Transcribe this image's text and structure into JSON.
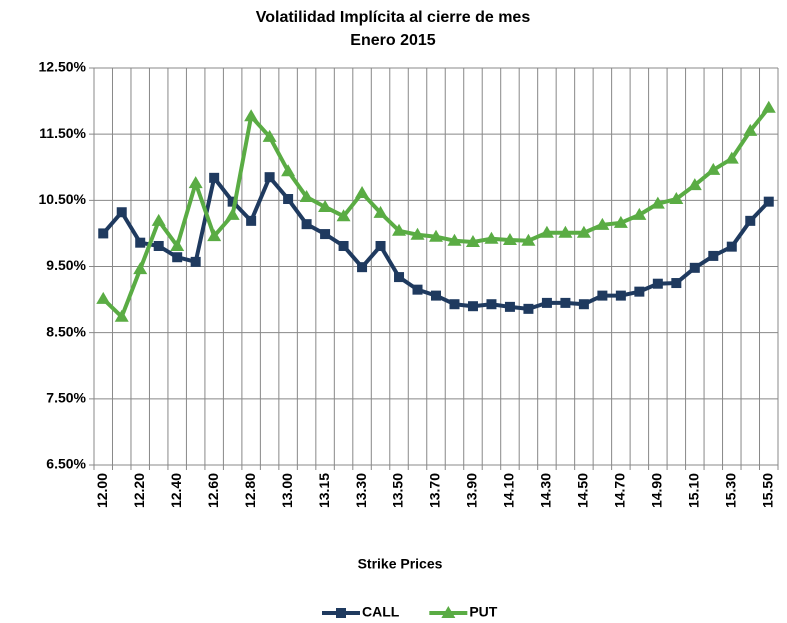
{
  "chart_data": {
    "type": "line",
    "title": "Volatilidad Implícita al cierre de mes",
    "subtitle": "Enero 2015",
    "x_label": "Strike Prices",
    "categories": [
      "12.00",
      null,
      "12.20",
      null,
      "12.40",
      null,
      "12.60",
      null,
      "12.80",
      null,
      "13.00",
      null,
      "13.15",
      null,
      "13.30",
      null,
      "13.50",
      null,
      "13.70",
      null,
      "13.90",
      null,
      "14.10",
      null,
      "14.30",
      null,
      "14.50",
      null,
      "14.70",
      null,
      "14.90",
      null,
      "15.10",
      null,
      "15.30",
      null,
      "15.50"
    ],
    "series": [
      {
        "name": "CALL",
        "color": "#1f3a5f",
        "marker": "square",
        "values": [
          10.0,
          10.32,
          9.86,
          9.81,
          9.64,
          9.57,
          10.84,
          10.48,
          10.19,
          10.85,
          10.52,
          10.14,
          9.99,
          9.81,
          9.49,
          9.81,
          9.34,
          9.15,
          9.06,
          8.93,
          8.9,
          8.93,
          8.89,
          8.86,
          8.95,
          8.95,
          8.93,
          9.06,
          9.06,
          9.12,
          9.24,
          9.25,
          9.48,
          9.66,
          9.8,
          10.19,
          10.48
        ]
      },
      {
        "name": "PUT",
        "color": "#5aac44",
        "marker": "triangle",
        "values": [
          9.01,
          8.74,
          9.46,
          10.19,
          9.81,
          10.76,
          9.96,
          10.28,
          11.77,
          11.46,
          10.94,
          10.55,
          10.4,
          10.26,
          10.61,
          10.31,
          10.04,
          9.98,
          9.95,
          9.89,
          9.87,
          9.92,
          9.9,
          9.89,
          10.01,
          10.01,
          10.01,
          10.13,
          10.16,
          10.28,
          10.45,
          10.52,
          10.73,
          10.96,
          11.13,
          11.55,
          11.9
        ]
      }
    ],
    "ylim": [
      6.5,
      12.5
    ],
    "yticks": [
      {
        "value": 6.5,
        "label": "6.50%"
      },
      {
        "value": 7.5,
        "label": "7.50%"
      },
      {
        "value": 8.5,
        "label": "8.50%"
      },
      {
        "value": 9.5,
        "label": "9.50%"
      },
      {
        "value": 10.5,
        "label": "10.50%"
      },
      {
        "value": 11.5,
        "label": "11.50%"
      },
      {
        "value": 12.5,
        "label": "12.50%"
      }
    ],
    "grid": true,
    "legend": "bottom"
  }
}
